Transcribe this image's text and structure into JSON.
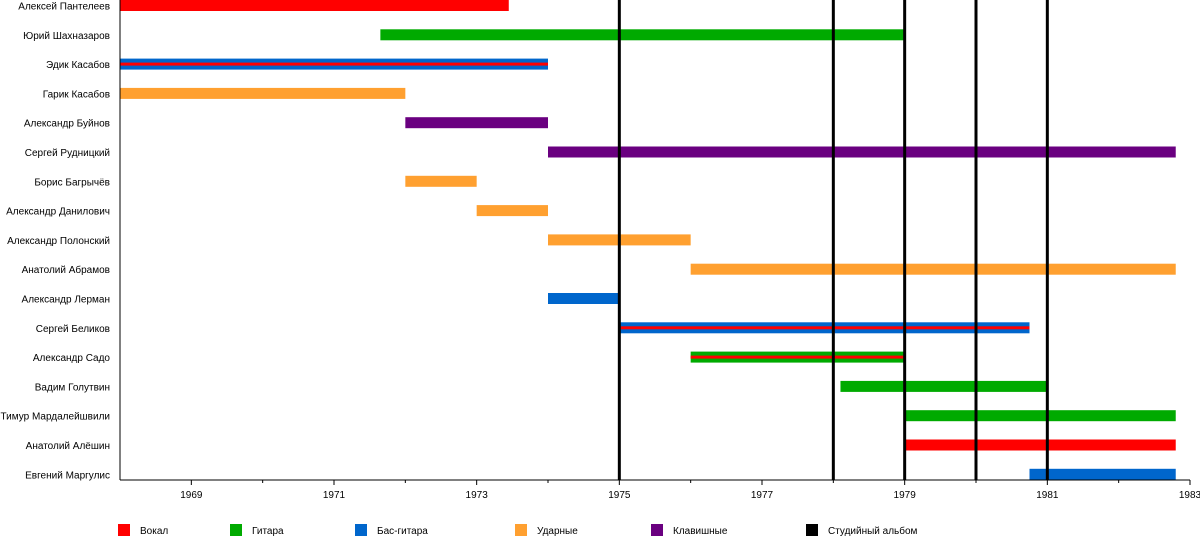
{
  "chart_data": {
    "type": "timeline",
    "x_range": [
      1968,
      1983
    ],
    "x_ticks_labeled": [
      1969,
      1971,
      1973,
      1975,
      1977,
      1979,
      1981,
      1983
    ],
    "x_ticks_minor": [
      1970,
      1972,
      1974,
      1976,
      1978,
      1980,
      1982
    ],
    "grid": false,
    "legend_placement": "bottom",
    "roles": {
      "vocals": {
        "label": "Вокал",
        "color": "#ff0000"
      },
      "guitar": {
        "label": "Гитара",
        "color": "#00aa00"
      },
      "bass": {
        "label": "Бас-гитара",
        "color": "#0066cc"
      },
      "drums": {
        "label": "Ударные",
        "color": "#ffa030"
      },
      "keys": {
        "label": "Клавишные",
        "color": "#6a0080"
      },
      "album": {
        "label": "Студийный альбом",
        "color": "#000000"
      }
    },
    "legend_order": [
      "vocals",
      "guitar",
      "bass",
      "drums",
      "keys",
      "album"
    ],
    "albums": [
      1975.0,
      1978.0,
      1979.0,
      1980.0,
      1981.0
    ],
    "members": [
      {
        "name": "Алексей Пантелеев",
        "bars": [
          {
            "start": 1968.0,
            "end": 1973.45,
            "role": "vocals"
          }
        ]
      },
      {
        "name": "Юрий Шахназаров",
        "bars": [
          {
            "start": 1971.65,
            "end": 1979.0,
            "role": "guitar"
          }
        ]
      },
      {
        "name": "Эдик Касабов",
        "bars": [
          {
            "start": 1968.0,
            "end": 1974.0,
            "role": "bass",
            "secondary": "vocals"
          }
        ]
      },
      {
        "name": "Гарик Касабов",
        "bars": [
          {
            "start": 1968.0,
            "end": 1972.0,
            "role": "drums"
          }
        ]
      },
      {
        "name": "Александр Буйнов",
        "bars": [
          {
            "start": 1972.0,
            "end": 1974.0,
            "role": "keys"
          }
        ]
      },
      {
        "name": "Сергей Рудницкий",
        "bars": [
          {
            "start": 1974.0,
            "end": 1982.8,
            "role": "keys"
          }
        ]
      },
      {
        "name": "Борис Багрычёв",
        "bars": [
          {
            "start": 1972.0,
            "end": 1973.0,
            "role": "drums"
          }
        ]
      },
      {
        "name": "Александр Данилович",
        "bars": [
          {
            "start": 1973.0,
            "end": 1974.0,
            "role": "drums"
          }
        ]
      },
      {
        "name": "Александр Полонский",
        "bars": [
          {
            "start": 1974.0,
            "end": 1976.0,
            "role": "drums"
          }
        ]
      },
      {
        "name": "Анатолий Абрамов",
        "bars": [
          {
            "start": 1976.0,
            "end": 1982.8,
            "role": "drums"
          }
        ]
      },
      {
        "name": "Александр Лерман",
        "bars": [
          {
            "start": 1974.0,
            "end": 1975.0,
            "role": "bass"
          }
        ]
      },
      {
        "name": "Сергей Беликов",
        "bars": [
          {
            "start": 1975.0,
            "end": 1980.75,
            "role": "bass",
            "secondary": "vocals"
          }
        ]
      },
      {
        "name": "Александр Садо",
        "bars": [
          {
            "start": 1976.0,
            "end": 1979.0,
            "role": "guitar",
            "secondary": "vocals"
          }
        ]
      },
      {
        "name": "Вадим Голутвин",
        "bars": [
          {
            "start": 1978.1,
            "end": 1981.0,
            "role": "guitar"
          }
        ]
      },
      {
        "name": "Тимур Мардалейшвили",
        "bars": [
          {
            "start": 1979.0,
            "end": 1982.8,
            "role": "guitar"
          }
        ]
      },
      {
        "name": "Анатолий Алёшин",
        "bars": [
          {
            "start": 1979.0,
            "end": 1982.8,
            "role": "vocals"
          }
        ]
      },
      {
        "name": "Евгений Маргулис",
        "bars": [
          {
            "start": 1980.75,
            "end": 1982.8,
            "role": "bass"
          }
        ]
      }
    ]
  }
}
